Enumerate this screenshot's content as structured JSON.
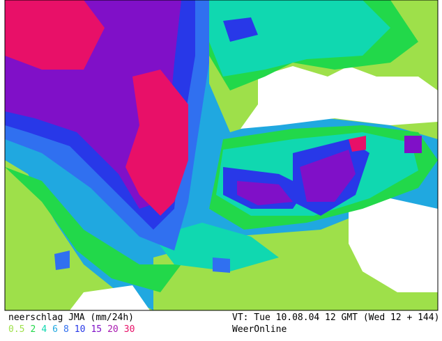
{
  "caption": {
    "title": "neerschlag JMA (mm/24h)",
    "valid_time": "VT: Tue 10.08.04 12 GMT (Wed 12 + 144)",
    "source": "WeerOnline"
  },
  "legend": [
    {
      "value": 0.5,
      "color": "#9ee04a"
    },
    {
      "value": 2,
      "color": "#22d84a"
    },
    {
      "value": 4,
      "color": "#10d8b0"
    },
    {
      "value": 6,
      "color": "#20a8e0"
    },
    {
      "value": 8,
      "color": "#3070f0"
    },
    {
      "value": 10,
      "color": "#2838e8"
    },
    {
      "value": 15,
      "color": "#8010c8"
    },
    {
      "value": 20,
      "color": "#a818b0"
    },
    {
      "value": 30,
      "color": "#e81068"
    }
  ]
}
